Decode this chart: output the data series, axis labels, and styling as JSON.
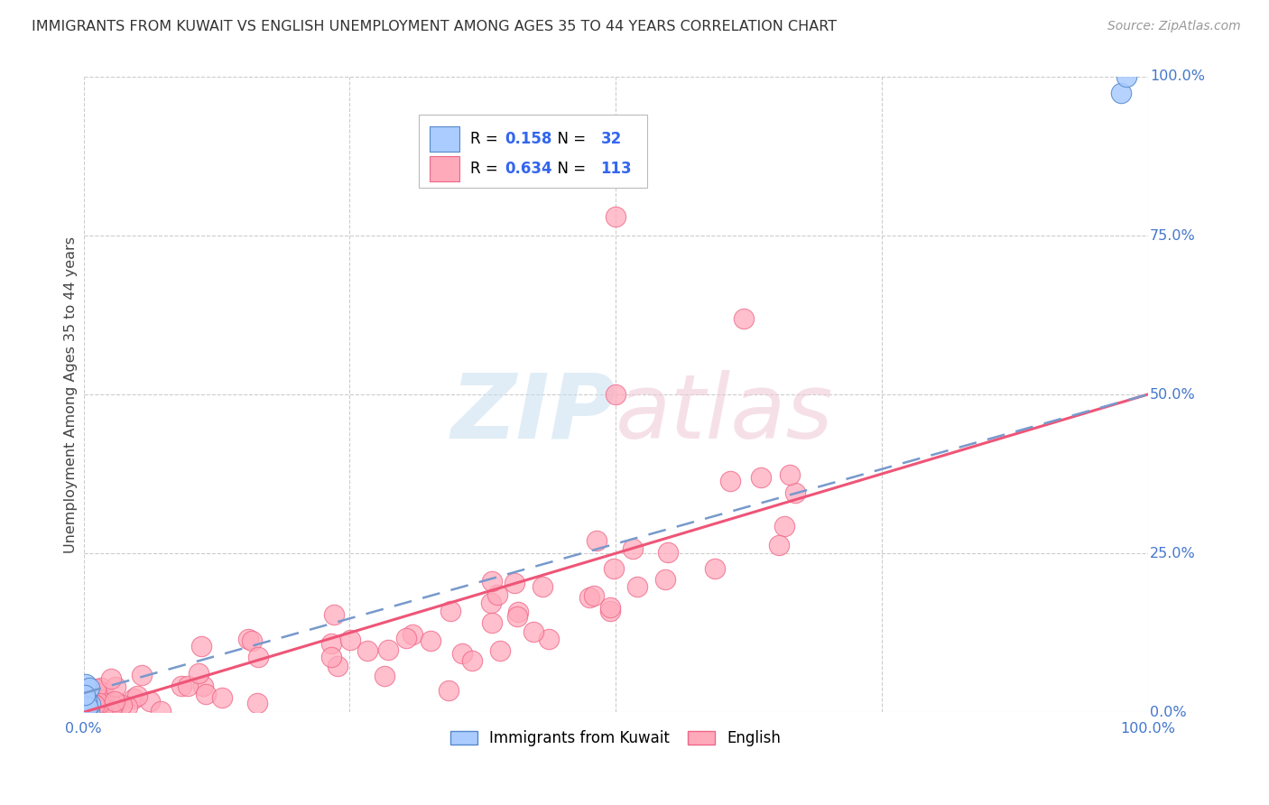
{
  "title": "IMMIGRANTS FROM KUWAIT VS ENGLISH UNEMPLOYMENT AMONG AGES 35 TO 44 YEARS CORRELATION CHART",
  "source": "Source: ZipAtlas.com",
  "ylabel": "Unemployment Among Ages 35 to 44 years",
  "ytick_labels": [
    "0.0%",
    "25.0%",
    "50.0%",
    "75.0%",
    "100.0%"
  ],
  "ytick_values": [
    0.0,
    0.25,
    0.5,
    0.75,
    1.0
  ],
  "xtick_labels": [
    "0.0%",
    "25.0%",
    "50.0%",
    "75.0%",
    "100.0%"
  ],
  "xtick_values": [
    0.0,
    0.25,
    0.5,
    0.75,
    1.0
  ],
  "kuwait_R": 0.158,
  "kuwait_N": 32,
  "english_R": 0.634,
  "english_N": 113,
  "kuwait_color": "#aaccff",
  "kuwait_edge": "#5588cc",
  "english_color": "#ffaabb",
  "english_edge": "#ee6688",
  "kuwait_trend_color": "#7799cc",
  "english_trend_color": "#ee5577",
  "bg_color": "#ffffff",
  "grid_color": "#cccccc",
  "axis_label_color": "#4477cc",
  "title_color": "#333333",
  "source_color": "#999999",
  "legend_text_color": "#000000",
  "legend_num_color": "#3366ee",
  "figsize": [
    14.06,
    8.92
  ],
  "english_trend_start_x": 0.0,
  "english_trend_start_y": 0.0,
  "english_trend_end_x": 1.0,
  "english_trend_end_y": 0.5,
  "kuwait_trend_start_x": 0.0,
  "kuwait_trend_start_y": 0.03,
  "kuwait_trend_end_x": 1.0,
  "kuwait_trend_end_y": 0.5
}
